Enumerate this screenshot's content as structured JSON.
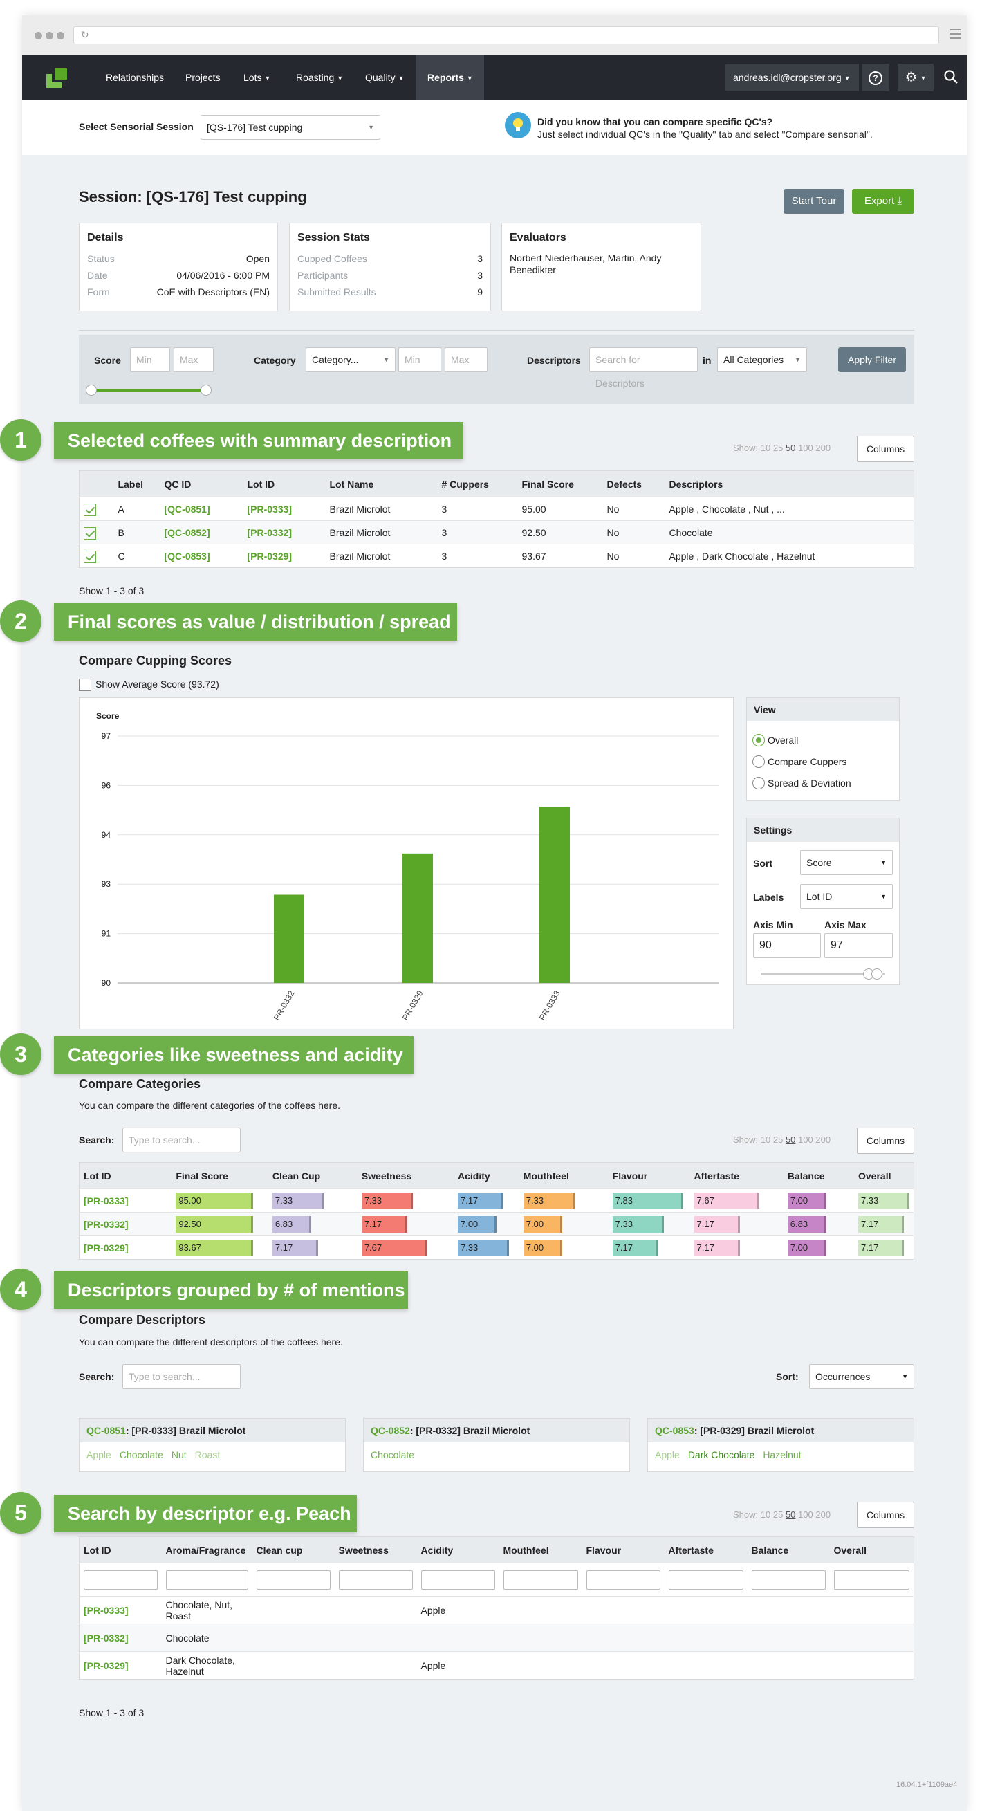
{
  "nav": {
    "items": [
      "Relationships",
      "Projects",
      "Lots",
      "Roasting",
      "Quality",
      "Reports"
    ],
    "user": "andreas.idl@cropster.org",
    "help": "?"
  },
  "session_select": {
    "label": "Select Sensorial Session",
    "value": "[QS-176] Test cupping"
  },
  "tip": {
    "title": "Did you know that you can compare specific QC's?",
    "text": "Just select individual QC's in the \"Quality\" tab and select \"Compare sensorial\"."
  },
  "session": {
    "title": "Session: [QS-176] Test cupping",
    "start_tour": "Start Tour",
    "export": "Export"
  },
  "details": {
    "title": "Details",
    "rows": [
      {
        "k": "Status",
        "v": "Open"
      },
      {
        "k": "Date",
        "v": "04/06/2016 - 6:00 PM"
      },
      {
        "k": "Form",
        "v": "CoE with Descriptors (EN)"
      }
    ]
  },
  "stats": {
    "title": "Session Stats",
    "rows": [
      {
        "k": "Cupped Coffees",
        "v": "3"
      },
      {
        "k": "Participants",
        "v": "3"
      },
      {
        "k": "Submitted Results",
        "v": "9"
      }
    ]
  },
  "evaluators": {
    "title": "Evaluators",
    "text": "Norbert Niederhauser, Martin, Andy Benedikter"
  },
  "filter": {
    "score": "Score",
    "min": "Min",
    "max": "Max",
    "category": "Category",
    "category_value": "Category...",
    "descriptors": "Descriptors",
    "desc_placeholder": "Search for Descriptors",
    "in": "in",
    "in_value": "All Categories",
    "apply": "Apply Filter"
  },
  "banners": [
    {
      "n": "1",
      "text": "Selected coffees with summary description"
    },
    {
      "n": "2",
      "text": "Final scores as value / distribution / spread"
    },
    {
      "n": "3",
      "text": "Categories like sweetness and acidity"
    },
    {
      "n": "4",
      "text": "Descriptors grouped by # of mentions"
    },
    {
      "n": "5",
      "text": "Search by descriptor e.g. Peach"
    }
  ],
  "show": {
    "label": "Show:",
    "opts": [
      "10",
      "25",
      "50",
      "100",
      "200"
    ],
    "columns": "Columns"
  },
  "coffees": {
    "headers": [
      "Label",
      "QC ID",
      "Lot ID",
      "Lot Name",
      "# Cuppers",
      "Final Score",
      "Defects",
      "Descriptors"
    ],
    "rows": [
      [
        "A",
        "[QC-0851]",
        "[PR-0333]",
        "Brazil Microlot",
        "3",
        "95.00",
        "No",
        "Apple , Chocolate , Nut , ..."
      ],
      [
        "B",
        "[QC-0852]",
        "[PR-0332]",
        "Brazil Microlot",
        "3",
        "92.50",
        "No",
        "Chocolate"
      ],
      [
        "C",
        "[QC-0853]",
        "[PR-0329]",
        "Brazil Microlot",
        "3",
        "93.67",
        "No",
        "Apple , Dark Chocolate , Hazelnut"
      ]
    ],
    "footer": "Show 1 - 3 of 3"
  },
  "compare_scores": {
    "title": "Compare Cupping Scores",
    "avg": "Show Average Score (93.72)"
  },
  "chart_data": {
    "type": "bar",
    "ylabel": "Score",
    "categories": [
      "PR-0332",
      "PR-0329",
      "PR-0333"
    ],
    "values": [
      92.5,
      93.67,
      95.0
    ],
    "ylim": [
      90,
      97
    ],
    "ticks": [
      "97",
      "96",
      "94",
      "93",
      "91",
      "90"
    ],
    "color": "#5aa626"
  },
  "view": {
    "title": "View",
    "options": [
      "Overall",
      "Compare Cuppers",
      "Spread & Deviation"
    ]
  },
  "settings": {
    "title": "Settings",
    "sort": "Sort",
    "sort_value": "Score",
    "labels": "Labels",
    "labels_value": "Lot ID",
    "axis_min": "Axis Min",
    "axis_max": "Axis Max",
    "axis_min_value": "90",
    "axis_max_value": "97"
  },
  "categories": {
    "title": "Compare Categories",
    "subtitle": "You can compare the different categories of the coffees here.",
    "search": "Search:",
    "placeholder": "Type to search...",
    "headers": [
      "Lot ID",
      "Final Score",
      "Clean Cup",
      "Sweetness",
      "Acidity",
      "Mouthfeel",
      "Flavour",
      "Aftertaste",
      "Balance",
      "Overall"
    ],
    "colors": [
      "#b5de6e",
      "#c7bfe0",
      "#f47b72",
      "#84b4d9",
      "#f9b562",
      "#8ed6c1",
      "#f9cce0",
      "#c685c6",
      "#cce9c0"
    ],
    "rows": [
      {
        "id": "[PR-0333]",
        "v": [
          "95.00",
          "7.33",
          "7.33",
          "7.17",
          "7.33",
          "7.83",
          "7.67",
          "7.00",
          "7.33"
        ]
      },
      {
        "id": "[PR-0332]",
        "v": [
          "92.50",
          "6.83",
          "7.17",
          "7.00",
          "7.00",
          "7.33",
          "7.17",
          "6.83",
          "7.17"
        ]
      },
      {
        "id": "[PR-0329]",
        "v": [
          "93.67",
          "7.17",
          "7.67",
          "7.33",
          "7.00",
          "7.17",
          "7.17",
          "7.00",
          "7.17"
        ]
      }
    ]
  },
  "descriptors": {
    "title": "Compare Descriptors",
    "subtitle": "You can compare the different descriptors of the coffees here.",
    "search": "Search:",
    "placeholder": "Type to search...",
    "sort": "Sort:",
    "sort_value": "Occurrences",
    "cards": [
      {
        "qc": "QC-0851",
        "name": ": [PR-0333] Brazil Microlot",
        "tags": [
          {
            "t": "Apple",
            "c": "t1"
          },
          {
            "t": "Chocolate",
            "c": "t2"
          },
          {
            "t": "Nut",
            "c": "t2"
          },
          {
            "t": "Roast",
            "c": "t1"
          }
        ]
      },
      {
        "qc": "QC-0852",
        "name": ": [PR-0332] Brazil Microlot",
        "tags": [
          {
            "t": "Chocolate",
            "c": "t2"
          }
        ]
      },
      {
        "qc": "QC-0853",
        "name": ": [PR-0329] Brazil Microlot",
        "tags": [
          {
            "t": "Apple",
            "c": "t1"
          },
          {
            "t": "Dark Chocolate",
            "c": "t3"
          },
          {
            "t": "Hazelnut",
            "c": "t2"
          }
        ]
      }
    ]
  },
  "search_table": {
    "headers": [
      "Lot ID",
      "Aroma/Fragrance",
      "Clean cup",
      "Sweetness",
      "Acidity",
      "Mouthfeel",
      "Flavour",
      "Aftertaste",
      "Balance",
      "Overall"
    ],
    "rows": [
      {
        "id": "[PR-0333]",
        "aroma": "Chocolate, Nut, Roast",
        "acidity": "Apple"
      },
      {
        "id": "[PR-0332]",
        "aroma": "Chocolate",
        "acidity": ""
      },
      {
        "id": "[PR-0329]",
        "aroma": "Dark Chocolate, Hazelnut",
        "acidity": "Apple"
      }
    ],
    "footer": "Show 1 - 3 of 3"
  },
  "version": "16.04.1+f1109ae4"
}
